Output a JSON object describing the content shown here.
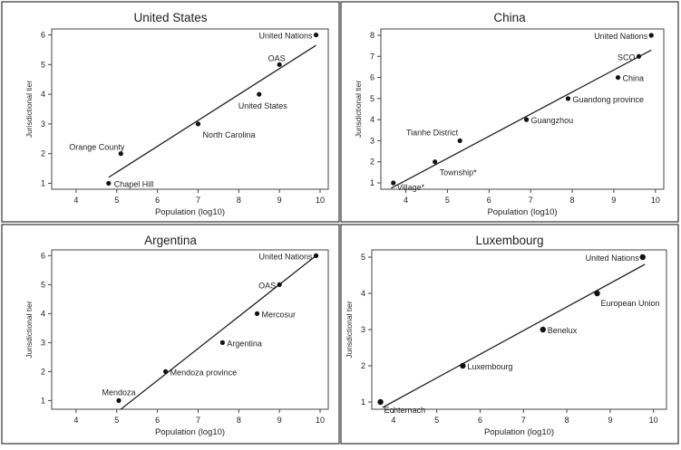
{
  "figure": {
    "xlabel": "Population (log10)",
    "ylabel": "Jurisdictional tier"
  },
  "chart_data": [
    {
      "type": "scatter",
      "title": "United States",
      "xlabel": "Population (log10)",
      "ylabel": "Jurisdictional tier",
      "xlim": [
        3.4,
        10.2
      ],
      "ylim": [
        0.8,
        6.2
      ],
      "xticks": [
        4,
        5,
        6,
        7,
        8,
        9,
        10
      ],
      "yticks": [
        1,
        2,
        3,
        4,
        5,
        6
      ],
      "fit_line": {
        "x": [
          4.8,
          9.9
        ],
        "y": [
          1.2,
          5.65
        ]
      },
      "points": [
        {
          "label": "Chapel Hill",
          "x": 4.8,
          "y": 1
        },
        {
          "label": "Orange County",
          "x": 5.1,
          "y": 2
        },
        {
          "label": "North Carolina",
          "x": 7.0,
          "y": 3
        },
        {
          "label": "United States",
          "x": 8.5,
          "y": 4
        },
        {
          "label": "OAS",
          "x": 9.0,
          "y": 5
        },
        {
          "label": "United Nations",
          "x": 9.9,
          "y": 6
        }
      ]
    },
    {
      "type": "scatter",
      "title": "China",
      "xlabel": "Population (log10)",
      "ylabel": "Jurisdictional tier",
      "xlim": [
        3.4,
        10.2
      ],
      "ylim": [
        0.7,
        8.3
      ],
      "xticks": [
        4,
        5,
        6,
        7,
        8,
        9,
        10
      ],
      "yticks": [
        1,
        2,
        3,
        4,
        5,
        6,
        7,
        8
      ],
      "fit_line": {
        "x": [
          3.65,
          9.9
        ],
        "y": [
          0.75,
          7.3
        ]
      },
      "points": [
        {
          "label": "Village*",
          "x": 3.7,
          "y": 1
        },
        {
          "label": "Township*",
          "x": 4.7,
          "y": 2
        },
        {
          "label": "Tianhe District",
          "x": 5.3,
          "y": 3
        },
        {
          "label": "Guangzhou",
          "x": 6.9,
          "y": 4
        },
        {
          "label": "Guandong province",
          "x": 7.9,
          "y": 5
        },
        {
          "label": "China",
          "x": 9.1,
          "y": 6
        },
        {
          "label": "SCO",
          "x": 9.6,
          "y": 7
        },
        {
          "label": "United Nations",
          "x": 9.9,
          "y": 8
        }
      ]
    },
    {
      "type": "scatter",
      "title": "Argentina",
      "xlabel": "Population (log10)",
      "ylabel": "Jurisdictional tier",
      "xlim": [
        3.4,
        10.2
      ],
      "ylim": [
        0.7,
        6.2
      ],
      "xticks": [
        4,
        5,
        6,
        7,
        8,
        9,
        10
      ],
      "yticks": [
        1,
        2,
        3,
        4,
        5,
        6
      ],
      "fit_line": {
        "x": [
          5.1,
          9.9
        ],
        "y": [
          0.7,
          6.0
        ]
      },
      "points": [
        {
          "label": "Mendoza",
          "x": 5.05,
          "y": 1
        },
        {
          "label": "Mendoza province",
          "x": 6.2,
          "y": 2
        },
        {
          "label": "Argentina",
          "x": 7.6,
          "y": 3
        },
        {
          "label": "Mercosur",
          "x": 8.45,
          "y": 4
        },
        {
          "label": "OAS",
          "x": 9.0,
          "y": 5
        },
        {
          "label": "United Nations",
          "x": 9.9,
          "y": 6
        }
      ]
    },
    {
      "type": "scatter",
      "title": "Luxembourg",
      "xlabel": "Population (log10)",
      "ylabel": "Jurisdictional tier",
      "xlim": [
        3.5,
        10.3
      ],
      "ylim": [
        0.8,
        5.2
      ],
      "xticks": [
        4,
        5,
        6,
        7,
        8,
        9,
        10
      ],
      "yticks": [
        1,
        2,
        3,
        4,
        5
      ],
      "fit_line": {
        "x": [
          3.75,
          9.8
        ],
        "y": [
          0.85,
          4.8
        ]
      },
      "points": [
        {
          "label": "Echternach",
          "x": 3.7,
          "y": 1
        },
        {
          "label": "Luxembourg",
          "x": 5.6,
          "y": 2
        },
        {
          "label": "Benelux",
          "x": 7.45,
          "y": 3
        },
        {
          "label": "European Union",
          "x": 8.7,
          "y": 4
        },
        {
          "label": "United Nations",
          "x": 9.75,
          "y": 5
        }
      ]
    }
  ]
}
